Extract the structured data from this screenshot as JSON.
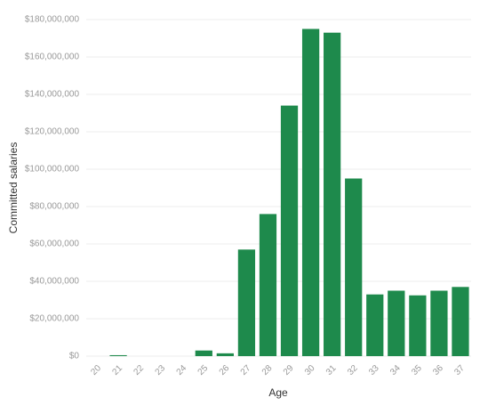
{
  "chart_data": {
    "type": "bar",
    "x_label": "Age",
    "y_label": "Committed salaries",
    "categories": [
      "20",
      "21",
      "22",
      "23",
      "24",
      "25",
      "26",
      "27",
      "28",
      "29",
      "30",
      "31",
      "32",
      "33",
      "34",
      "35",
      "36",
      "37"
    ],
    "values": [
      0,
      500000,
      0,
      0,
      0,
      3000000,
      1500000,
      57000000,
      76000000,
      134000000,
      175000000,
      173000000,
      95000000,
      33000000,
      35000000,
      32500000,
      35000000,
      37000000
    ],
    "color": "#1e8a4c",
    "ylim": [
      0,
      180000000
    ],
    "yticks": [
      {
        "value": 0,
        "label": "$0"
      },
      {
        "value": 20000000,
        "label": "$20,000,000"
      },
      {
        "value": 40000000,
        "label": "$40,000,000"
      },
      {
        "value": 60000000,
        "label": "$60,000,000"
      },
      {
        "value": 80000000,
        "label": "$80,000,000"
      },
      {
        "value": 100000000,
        "label": "$100,000,000"
      },
      {
        "value": 120000000,
        "label": "$120,000,000"
      },
      {
        "value": 140000000,
        "label": "$140,000,000"
      },
      {
        "value": 160000000,
        "label": "$160,000,000"
      },
      {
        "value": 180000000,
        "label": "$180,000,000"
      }
    ],
    "grid": true
  }
}
